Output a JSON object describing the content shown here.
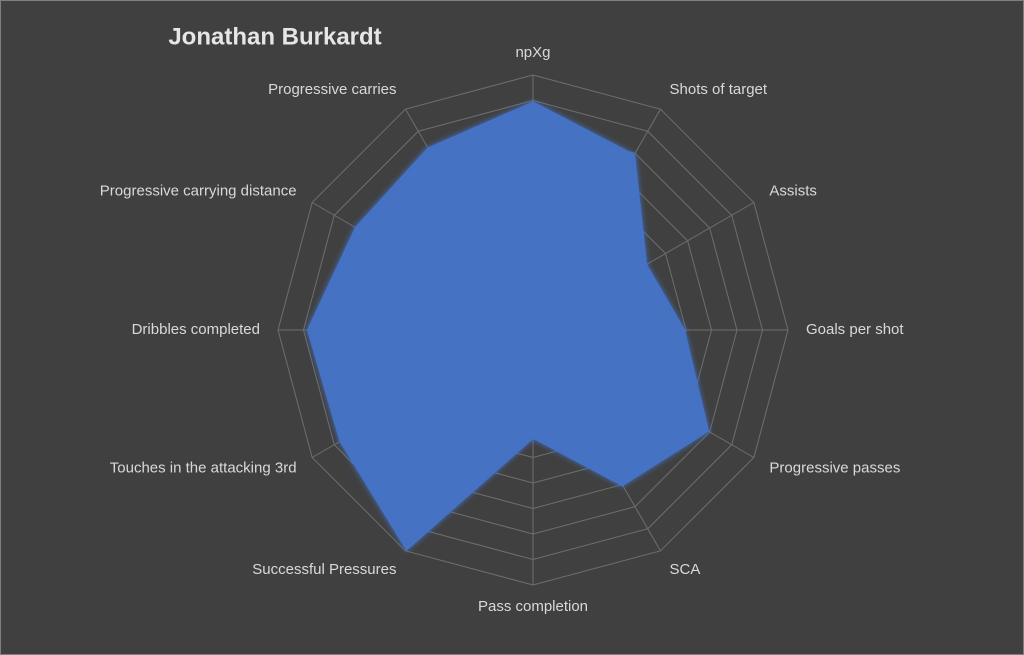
{
  "chart_data": {
    "type": "radar",
    "title": "Jonathan Burkardt",
    "categories": [
      "npXg",
      "Shots of target",
      "Assists",
      "Goals per shot",
      "Progressive passes",
      "SCA",
      "Pass completion",
      "Successful Pressures",
      "Touches in the attacking 3rd",
      "Dribbles completed",
      "Progressive carrying distance",
      "Progressive carries"
    ],
    "values": [
      89,
      79,
      51,
      59,
      79,
      70,
      42,
      99,
      87,
      88,
      80,
      82
    ],
    "color": "#4472c4",
    "rlim": [
      0,
      100
    ],
    "rticks": [
      10,
      20,
      30,
      40,
      50,
      60,
      70,
      80,
      90,
      100
    ],
    "grid": true
  }
}
